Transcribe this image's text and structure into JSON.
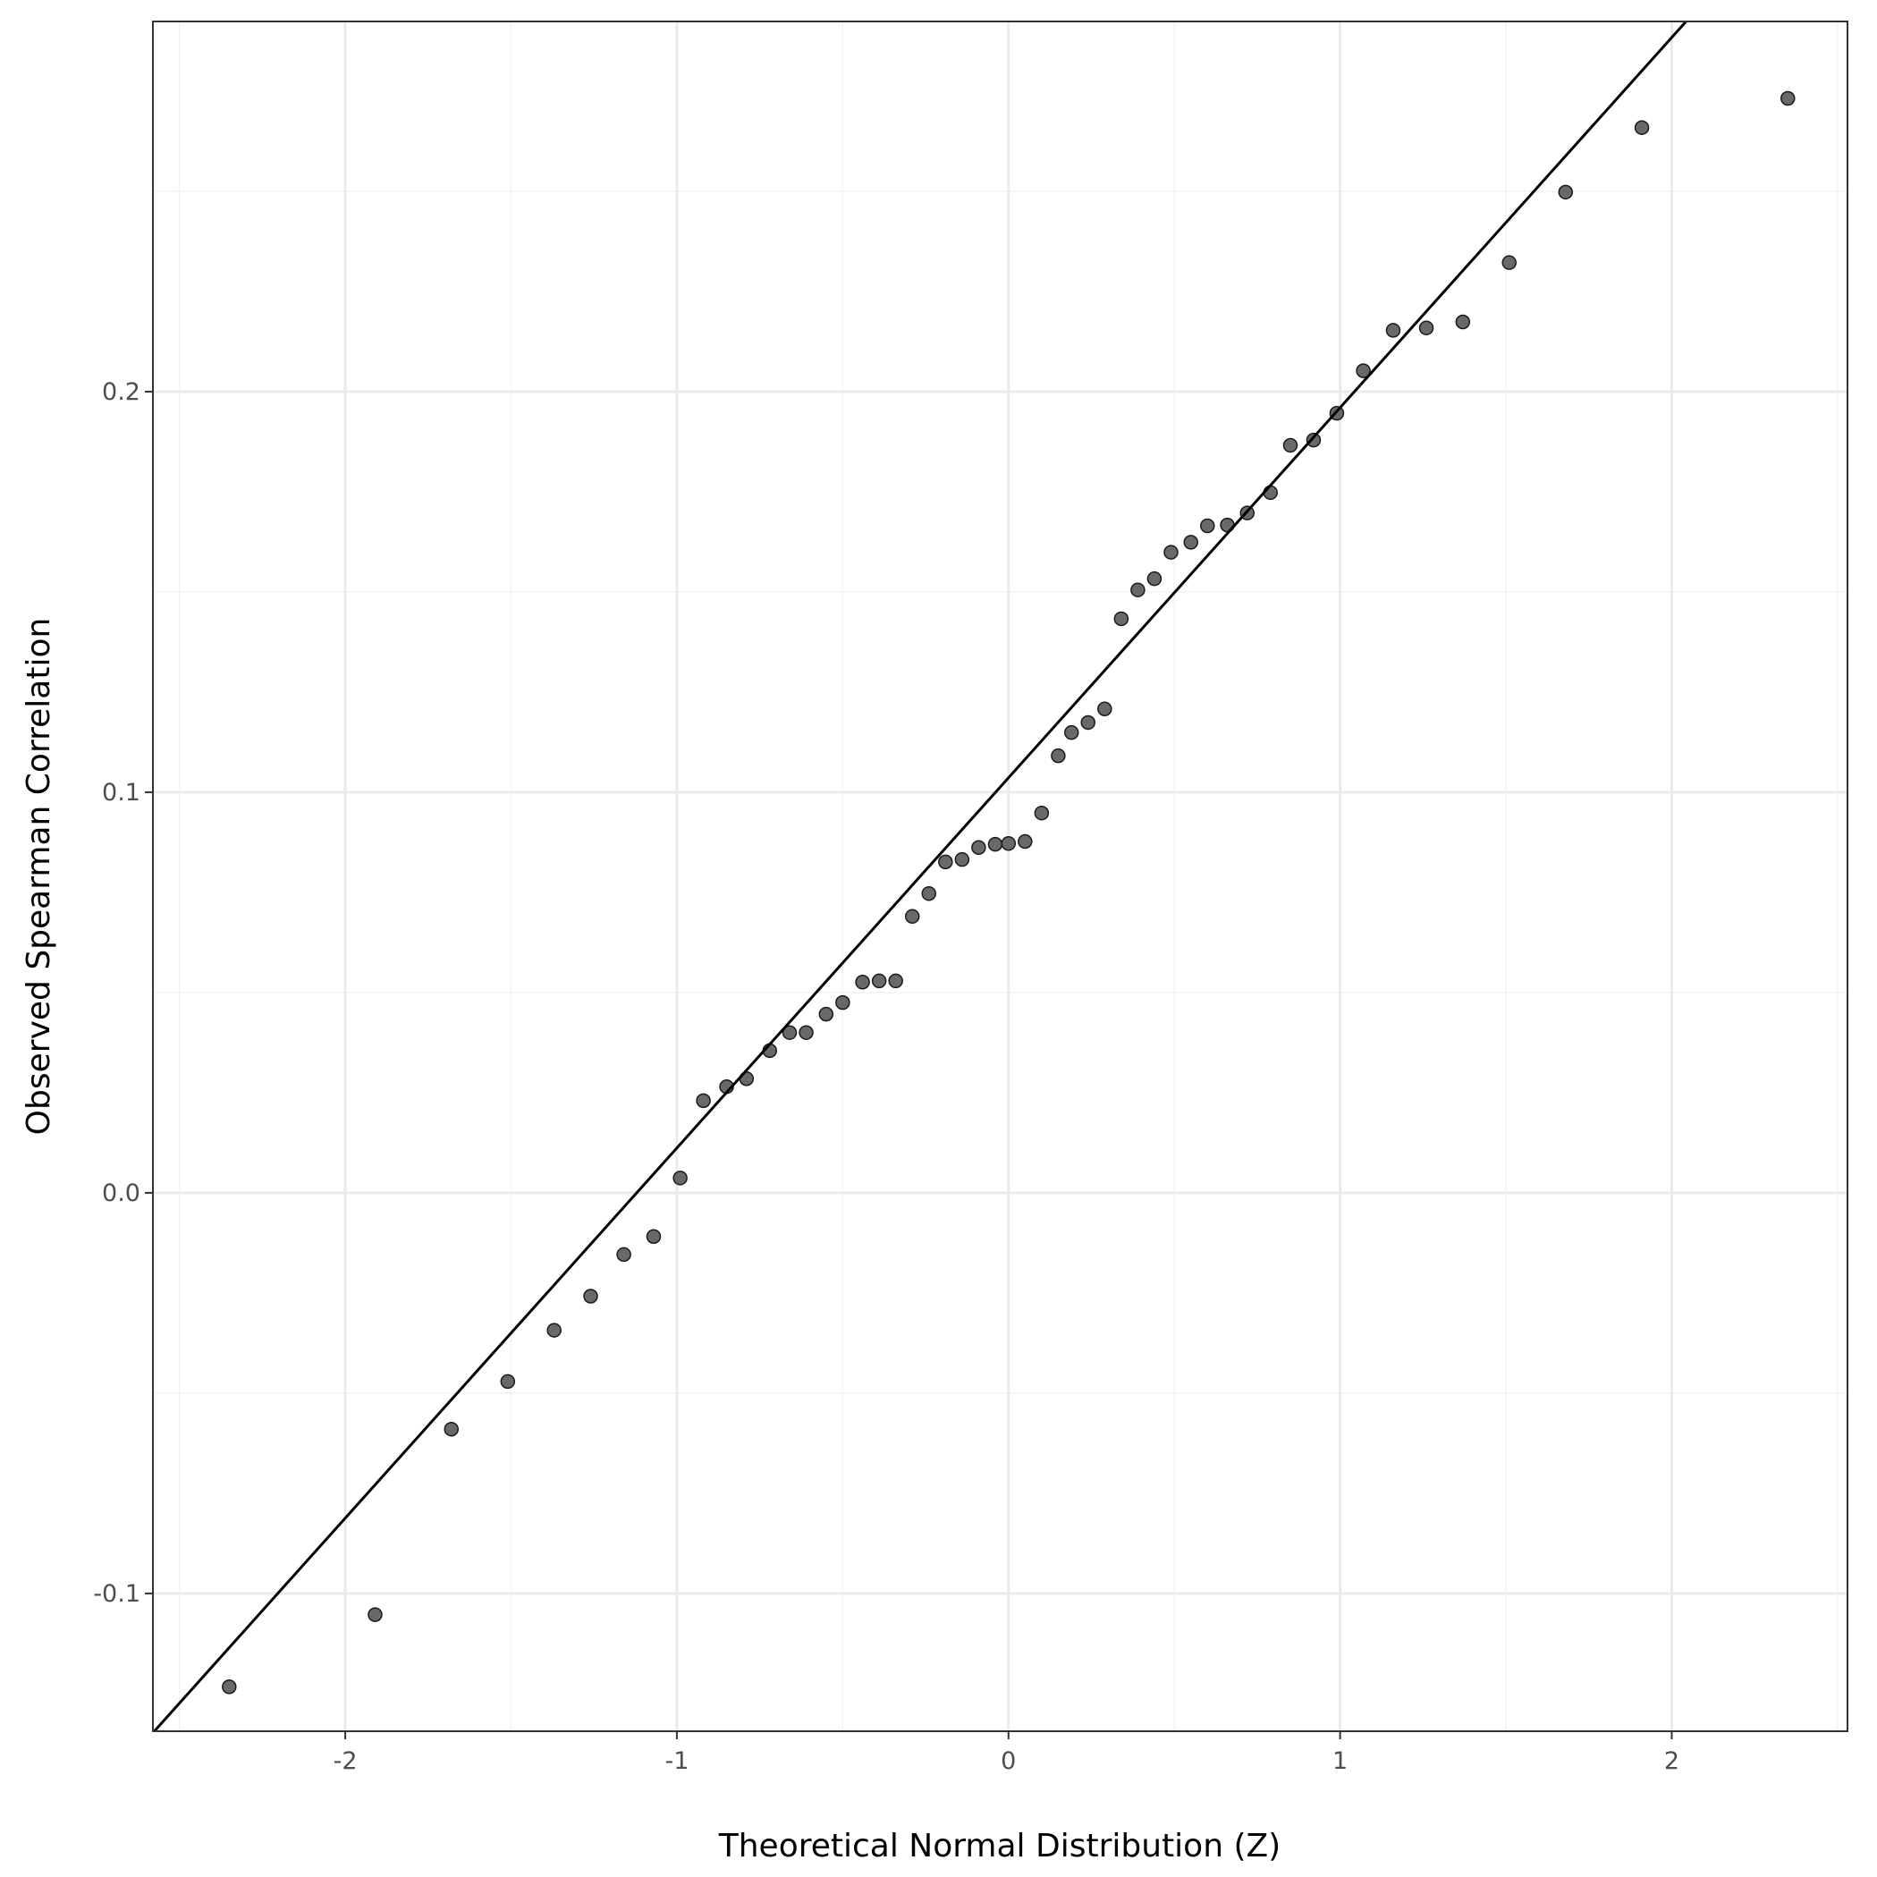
{
  "chart_data": {
    "type": "scatter",
    "title": "",
    "xlabel": "Theoretical Normal Distribution (Z)",
    "ylabel": "Observed Spearman Correlation",
    "xlim": [
      -2.58,
      2.53
    ],
    "ylim": [
      -0.1344,
      0.2924
    ],
    "x_ticks": [
      -2,
      -1,
      0,
      1,
      2
    ],
    "x_tick_labels": [
      "-2",
      "-1",
      "0",
      "1",
      "2"
    ],
    "y_ticks": [
      -0.1,
      0.0,
      0.1,
      0.2
    ],
    "y_tick_labels": [
      "-0.1",
      "0.0",
      "0.1",
      "0.2"
    ],
    "grid": true,
    "theme": "black-and-white with light gray major and minor gridlines",
    "colors": {
      "points": "#595959",
      "point_outline": "#1a1a1a",
      "line": "#000000",
      "grid_major": "#ebebeb",
      "grid_minor": "#f2f2f2",
      "panel_border": "#333333"
    },
    "reference_line": {
      "slope": 0.0924,
      "intercept": 0.1036
    },
    "series": [
      {
        "points": [
          [
            -2.35,
            -0.1233
          ],
          [
            -1.91,
            -0.1053
          ],
          [
            -1.68,
            -0.059
          ],
          [
            -1.51,
            -0.0471
          ],
          [
            -1.37,
            -0.0343
          ],
          [
            -1.26,
            -0.0258
          ],
          [
            -1.16,
            -0.0154
          ],
          [
            -1.07,
            -0.0109
          ],
          [
            -0.99,
            0.0037
          ],
          [
            -0.92,
            0.023
          ],
          [
            -0.85,
            0.0265
          ],
          [
            -0.79,
            0.0285
          ],
          [
            -0.72,
            0.0355
          ],
          [
            -0.66,
            0.04
          ],
          [
            -0.61,
            0.04
          ],
          [
            -0.55,
            0.0446
          ],
          [
            -0.5,
            0.0475
          ],
          [
            -0.44,
            0.0526
          ],
          [
            -0.39,
            0.0529
          ],
          [
            -0.34,
            0.0529
          ],
          [
            -0.29,
            0.069
          ],
          [
            -0.24,
            0.0747
          ],
          [
            -0.19,
            0.0826
          ],
          [
            -0.14,
            0.0832
          ],
          [
            -0.09,
            0.0862
          ],
          [
            -0.04,
            0.087
          ],
          [
            0.0,
            0.0872
          ],
          [
            0.05,
            0.0877
          ],
          [
            0.1,
            0.0948
          ],
          [
            0.15,
            0.1091
          ],
          [
            0.19,
            0.1149
          ],
          [
            0.24,
            0.1174
          ],
          [
            0.29,
            0.1208
          ],
          [
            0.34,
            0.1433
          ],
          [
            0.39,
            0.1505
          ],
          [
            0.44,
            0.1533
          ],
          [
            0.49,
            0.1599
          ],
          [
            0.55,
            0.1624
          ],
          [
            0.6,
            0.1665
          ],
          [
            0.66,
            0.1667
          ],
          [
            0.72,
            0.1697
          ],
          [
            0.79,
            0.1748
          ],
          [
            0.85,
            0.1866
          ],
          [
            0.92,
            0.1879
          ],
          [
            0.99,
            0.1946
          ],
          [
            1.07,
            0.2052
          ],
          [
            1.16,
            0.2153
          ],
          [
            1.26,
            0.2159
          ],
          [
            1.37,
            0.2174
          ],
          [
            1.51,
            0.2322
          ],
          [
            1.68,
            0.2498
          ],
          [
            1.91,
            0.2659
          ],
          [
            2.35,
            0.2732
          ]
        ]
      }
    ]
  }
}
